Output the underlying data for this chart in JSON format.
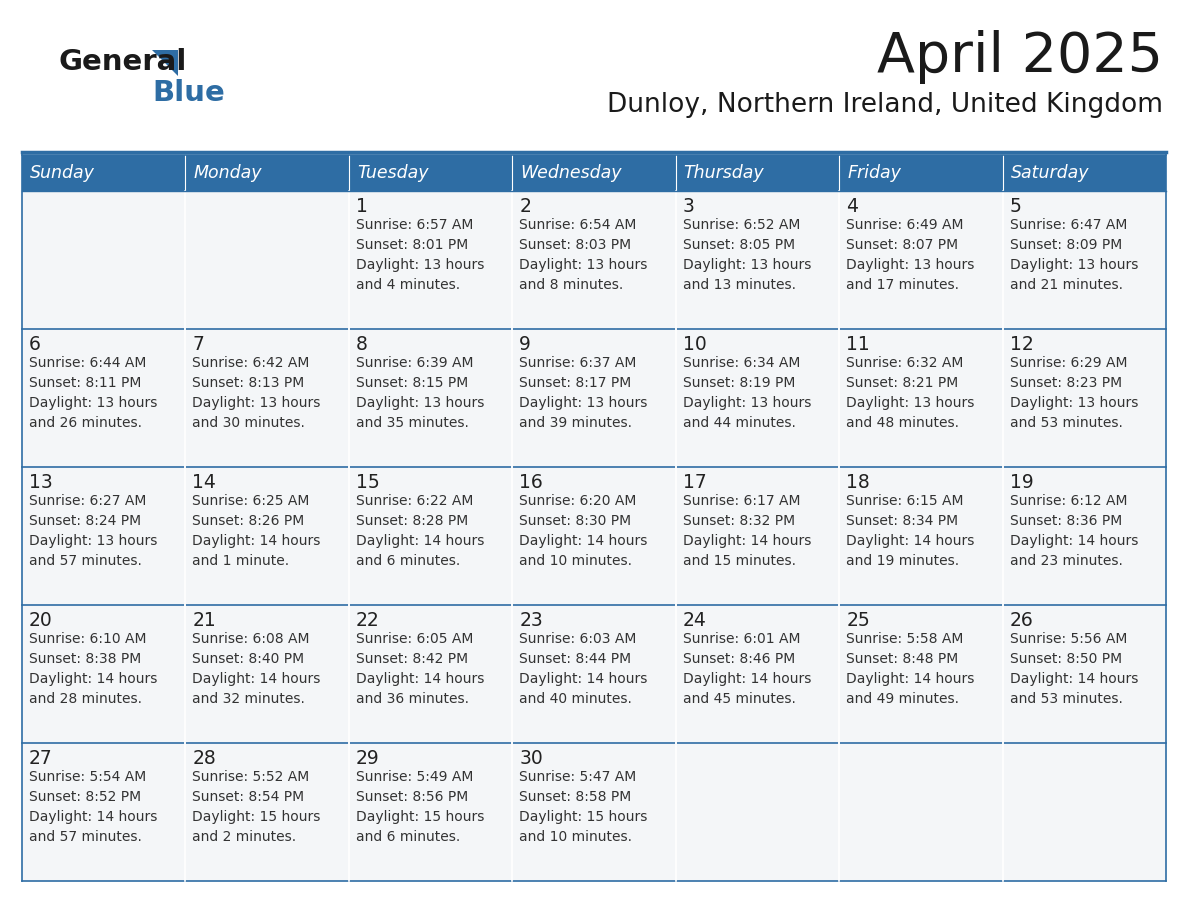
{
  "title": "April 2025",
  "subtitle": "Dunloy, Northern Ireland, United Kingdom",
  "days_of_week": [
    "Sunday",
    "Monday",
    "Tuesday",
    "Wednesday",
    "Thursday",
    "Friday",
    "Saturday"
  ],
  "header_bg": "#2E6DA4",
  "header_text": "#FFFFFF",
  "cell_bg": "#F4F6F8",
  "cell_border_color": "#2E6DA4",
  "title_color": "#1a1a1a",
  "subtitle_color": "#1a1a1a",
  "text_color": "#333333",
  "day_num_color": "#222222",
  "logo_general_color": "#1a1a1a",
  "logo_blue_color": "#2E6DA4",
  "logo_triangle_color": "#2E6DA4",
  "calendar": [
    [
      {
        "day": "",
        "info": ""
      },
      {
        "day": "",
        "info": ""
      },
      {
        "day": "1",
        "info": "Sunrise: 6:57 AM\nSunset: 8:01 PM\nDaylight: 13 hours\nand 4 minutes."
      },
      {
        "day": "2",
        "info": "Sunrise: 6:54 AM\nSunset: 8:03 PM\nDaylight: 13 hours\nand 8 minutes."
      },
      {
        "day": "3",
        "info": "Sunrise: 6:52 AM\nSunset: 8:05 PM\nDaylight: 13 hours\nand 13 minutes."
      },
      {
        "day": "4",
        "info": "Sunrise: 6:49 AM\nSunset: 8:07 PM\nDaylight: 13 hours\nand 17 minutes."
      },
      {
        "day": "5",
        "info": "Sunrise: 6:47 AM\nSunset: 8:09 PM\nDaylight: 13 hours\nand 21 minutes."
      }
    ],
    [
      {
        "day": "6",
        "info": "Sunrise: 6:44 AM\nSunset: 8:11 PM\nDaylight: 13 hours\nand 26 minutes."
      },
      {
        "day": "7",
        "info": "Sunrise: 6:42 AM\nSunset: 8:13 PM\nDaylight: 13 hours\nand 30 minutes."
      },
      {
        "day": "8",
        "info": "Sunrise: 6:39 AM\nSunset: 8:15 PM\nDaylight: 13 hours\nand 35 minutes."
      },
      {
        "day": "9",
        "info": "Sunrise: 6:37 AM\nSunset: 8:17 PM\nDaylight: 13 hours\nand 39 minutes."
      },
      {
        "day": "10",
        "info": "Sunrise: 6:34 AM\nSunset: 8:19 PM\nDaylight: 13 hours\nand 44 minutes."
      },
      {
        "day": "11",
        "info": "Sunrise: 6:32 AM\nSunset: 8:21 PM\nDaylight: 13 hours\nand 48 minutes."
      },
      {
        "day": "12",
        "info": "Sunrise: 6:29 AM\nSunset: 8:23 PM\nDaylight: 13 hours\nand 53 minutes."
      }
    ],
    [
      {
        "day": "13",
        "info": "Sunrise: 6:27 AM\nSunset: 8:24 PM\nDaylight: 13 hours\nand 57 minutes."
      },
      {
        "day": "14",
        "info": "Sunrise: 6:25 AM\nSunset: 8:26 PM\nDaylight: 14 hours\nand 1 minute."
      },
      {
        "day": "15",
        "info": "Sunrise: 6:22 AM\nSunset: 8:28 PM\nDaylight: 14 hours\nand 6 minutes."
      },
      {
        "day": "16",
        "info": "Sunrise: 6:20 AM\nSunset: 8:30 PM\nDaylight: 14 hours\nand 10 minutes."
      },
      {
        "day": "17",
        "info": "Sunrise: 6:17 AM\nSunset: 8:32 PM\nDaylight: 14 hours\nand 15 minutes."
      },
      {
        "day": "18",
        "info": "Sunrise: 6:15 AM\nSunset: 8:34 PM\nDaylight: 14 hours\nand 19 minutes."
      },
      {
        "day": "19",
        "info": "Sunrise: 6:12 AM\nSunset: 8:36 PM\nDaylight: 14 hours\nand 23 minutes."
      }
    ],
    [
      {
        "day": "20",
        "info": "Sunrise: 6:10 AM\nSunset: 8:38 PM\nDaylight: 14 hours\nand 28 minutes."
      },
      {
        "day": "21",
        "info": "Sunrise: 6:08 AM\nSunset: 8:40 PM\nDaylight: 14 hours\nand 32 minutes."
      },
      {
        "day": "22",
        "info": "Sunrise: 6:05 AM\nSunset: 8:42 PM\nDaylight: 14 hours\nand 36 minutes."
      },
      {
        "day": "23",
        "info": "Sunrise: 6:03 AM\nSunset: 8:44 PM\nDaylight: 14 hours\nand 40 minutes."
      },
      {
        "day": "24",
        "info": "Sunrise: 6:01 AM\nSunset: 8:46 PM\nDaylight: 14 hours\nand 45 minutes."
      },
      {
        "day": "25",
        "info": "Sunrise: 5:58 AM\nSunset: 8:48 PM\nDaylight: 14 hours\nand 49 minutes."
      },
      {
        "day": "26",
        "info": "Sunrise: 5:56 AM\nSunset: 8:50 PM\nDaylight: 14 hours\nand 53 minutes."
      }
    ],
    [
      {
        "day": "27",
        "info": "Sunrise: 5:54 AM\nSunset: 8:52 PM\nDaylight: 14 hours\nand 57 minutes."
      },
      {
        "day": "28",
        "info": "Sunrise: 5:52 AM\nSunset: 8:54 PM\nDaylight: 15 hours\nand 2 minutes."
      },
      {
        "day": "29",
        "info": "Sunrise: 5:49 AM\nSunset: 8:56 PM\nDaylight: 15 hours\nand 6 minutes."
      },
      {
        "day": "30",
        "info": "Sunrise: 5:47 AM\nSunset: 8:58 PM\nDaylight: 15 hours\nand 10 minutes."
      },
      {
        "day": "",
        "info": ""
      },
      {
        "day": "",
        "info": ""
      },
      {
        "day": "",
        "info": ""
      }
    ]
  ]
}
